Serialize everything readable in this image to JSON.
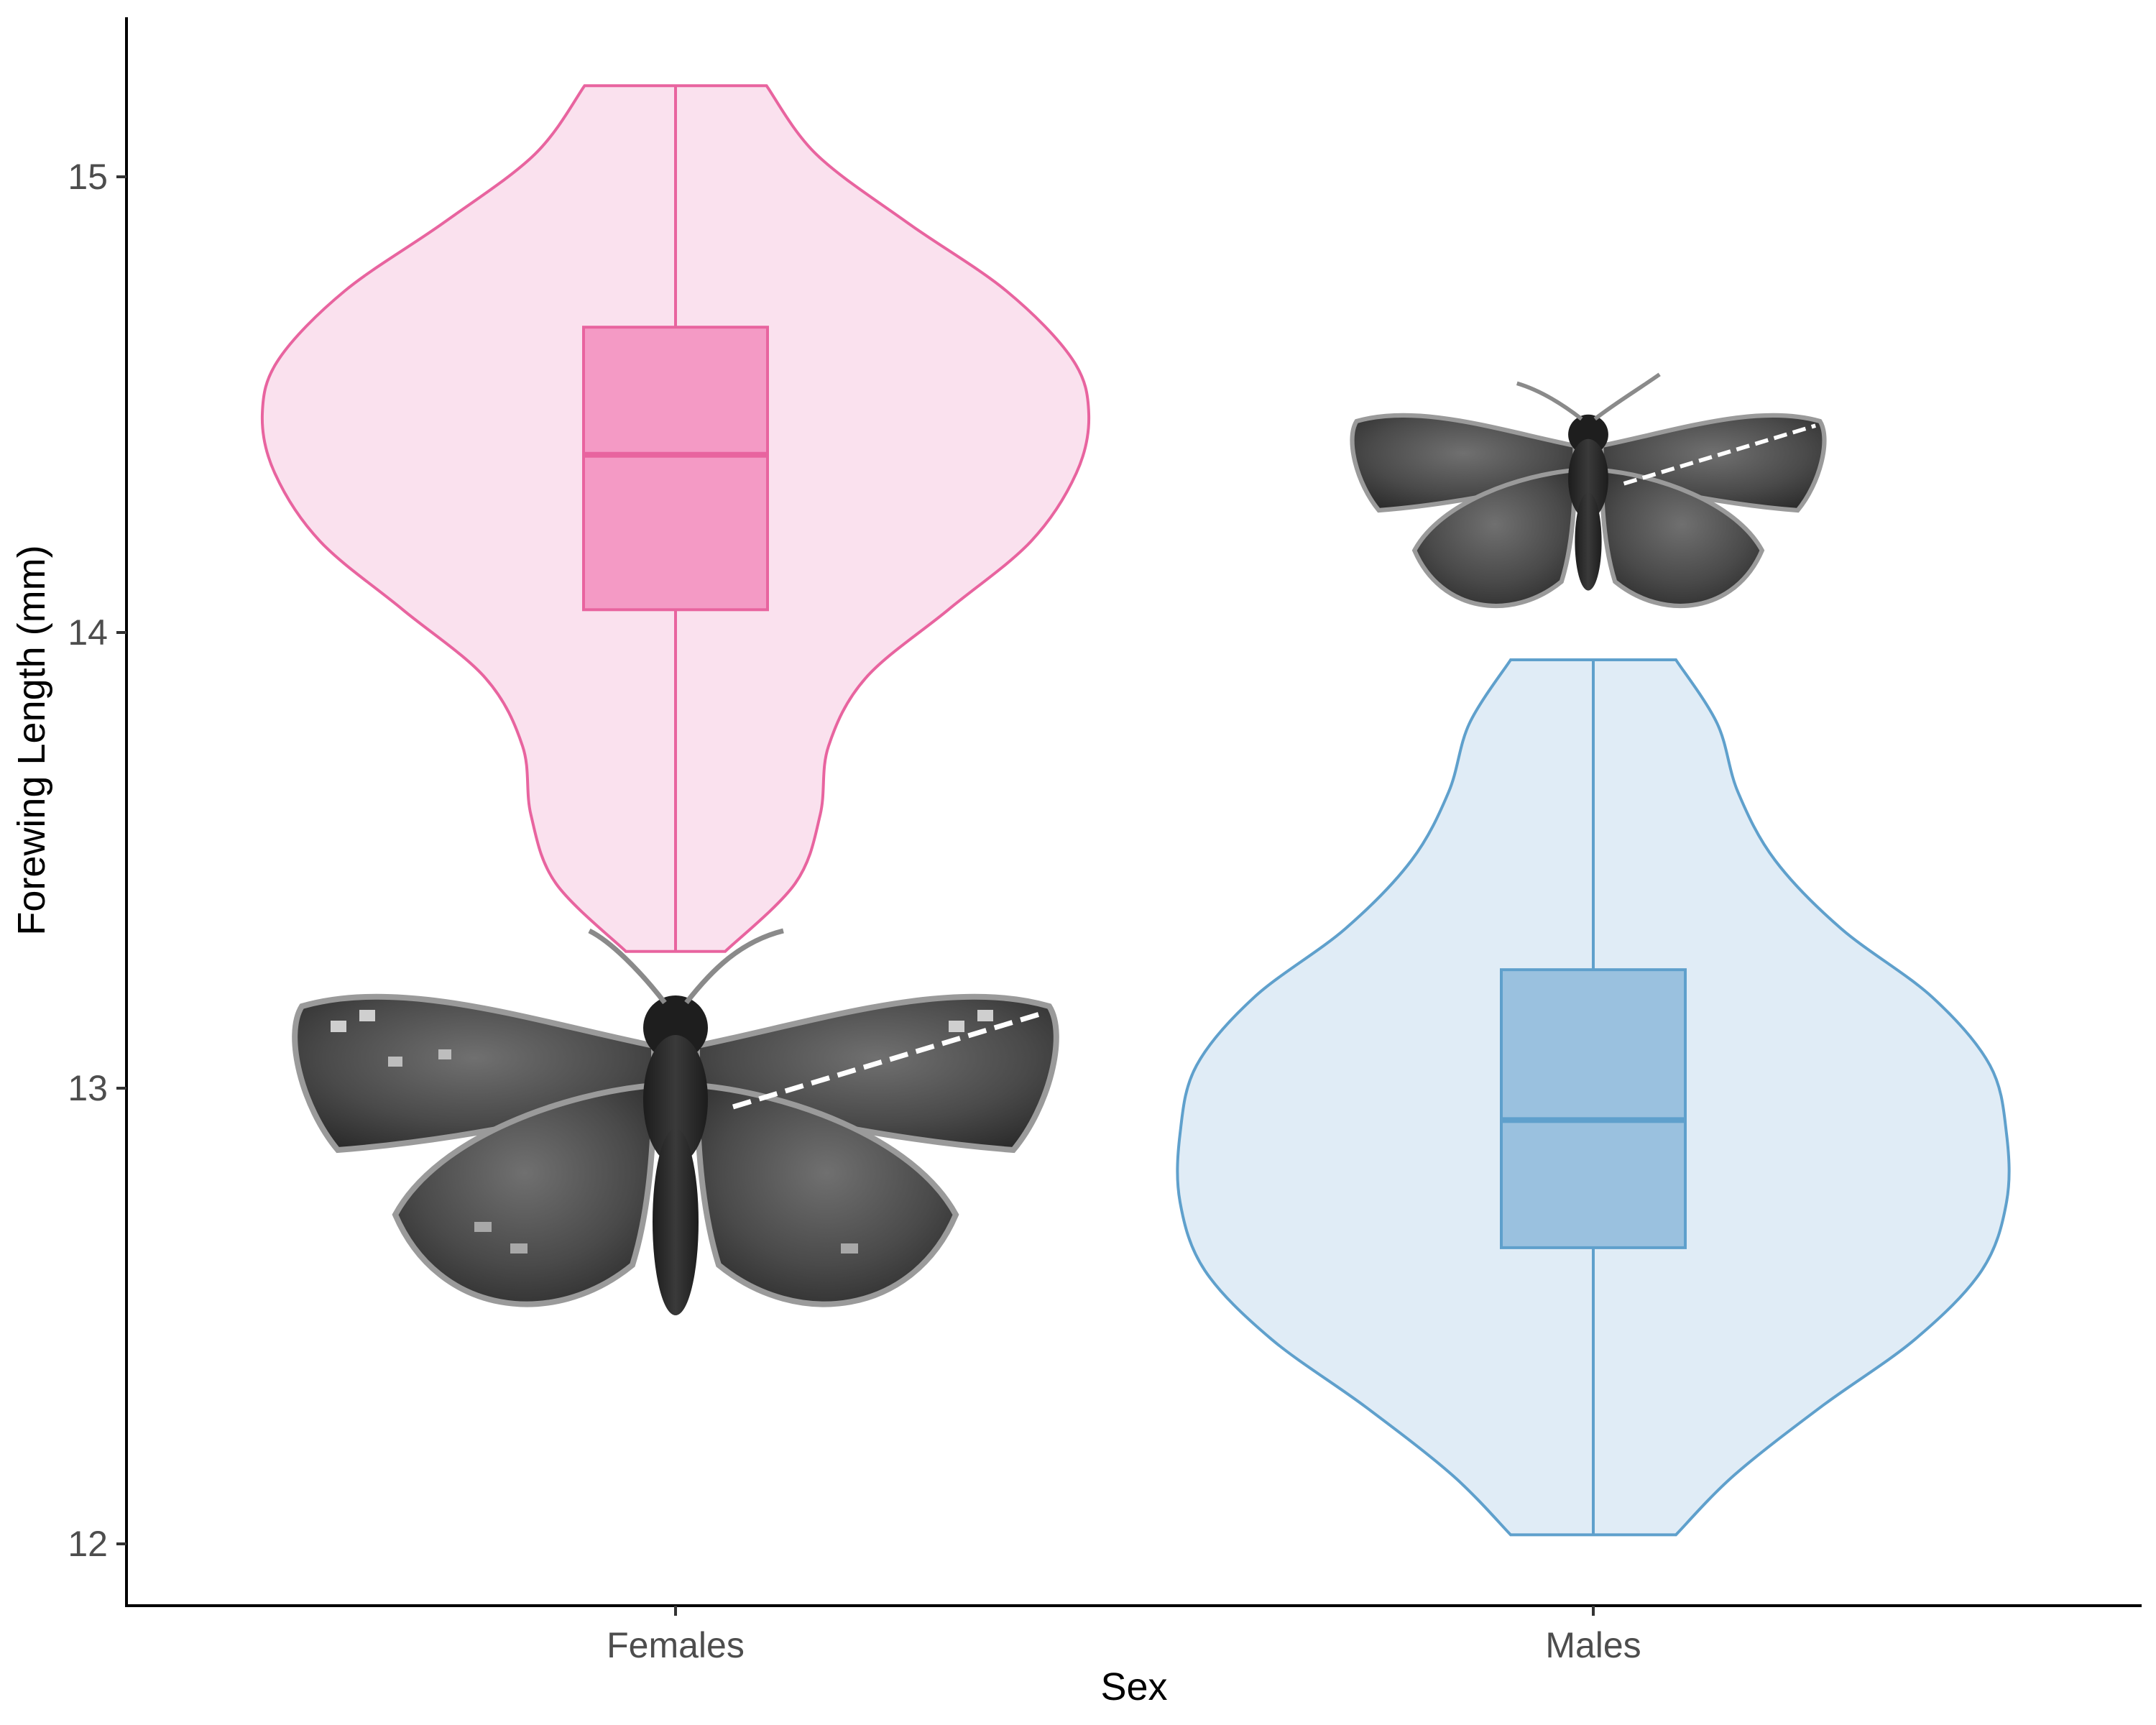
{
  "chart_data": {
    "type": "violin",
    "title": "",
    "xlabel": "Sex",
    "ylabel": "Forewing Length (mm)",
    "ylim": [
      11.86,
      15.36
    ],
    "yticks": [
      12,
      13,
      14,
      15
    ],
    "categories": [
      "Females",
      "Males"
    ],
    "grid": false,
    "legend": "none",
    "series": [
      {
        "name": "Females",
        "color": "#e8649f",
        "fill": "#fae1ee",
        "box_fill": "#f49ac5",
        "min": 13.3,
        "q1": 14.05,
        "median": 14.39,
        "q3": 14.67,
        "max": 15.2,
        "density_profile": [
          [
            13.3,
            0.12
          ],
          [
            13.45,
            0.29
          ],
          [
            13.6,
            0.35
          ],
          [
            13.75,
            0.37
          ],
          [
            13.9,
            0.46
          ],
          [
            14.05,
            0.66
          ],
          [
            14.2,
            0.86
          ],
          [
            14.35,
            0.97
          ],
          [
            14.48,
            1.0
          ],
          [
            14.6,
            0.96
          ],
          [
            14.75,
            0.8
          ],
          [
            14.9,
            0.56
          ],
          [
            15.05,
            0.34
          ],
          [
            15.2,
            0.22
          ]
        ],
        "icon": "male-skipper-butterfly-icon"
      },
      {
        "name": "Males",
        "color": "#5fa0cc",
        "fill": "#e0ecf6",
        "box_fill": "#9ac1df",
        "min": 12.02,
        "q1": 12.65,
        "median": 12.93,
        "q3": 13.26,
        "max": 13.94,
        "density_profile": [
          [
            12.02,
            0.2
          ],
          [
            12.15,
            0.34
          ],
          [
            12.3,
            0.55
          ],
          [
            12.45,
            0.78
          ],
          [
            12.6,
            0.94
          ],
          [
            12.75,
            1.0
          ],
          [
            12.9,
            1.0
          ],
          [
            13.05,
            0.96
          ],
          [
            13.2,
            0.82
          ],
          [
            13.35,
            0.6
          ],
          [
            13.5,
            0.44
          ],
          [
            13.65,
            0.35
          ],
          [
            13.8,
            0.3
          ],
          [
            13.94,
            0.2
          ]
        ],
        "icon": "female-skipper-butterfly-icon"
      }
    ]
  }
}
